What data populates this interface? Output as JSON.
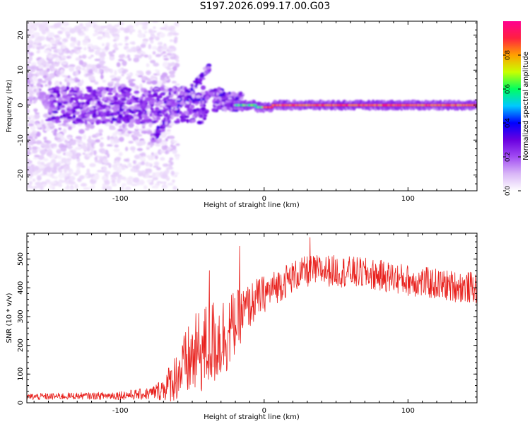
{
  "page": {
    "title": "S197.2026.099.17.00.G03"
  },
  "chart_data": [
    {
      "type": "heatmap",
      "title": "S197.2026.099.17.00.G03",
      "xlabel": "Height of straight line (km)",
      "ylabel": "Frequency (Hz)",
      "xlim": [
        -165,
        148
      ],
      "ylim": [
        -24.5,
        24
      ],
      "xticks": [
        -100,
        0,
        100
      ],
      "xtick_labels": [
        "-100",
        "0",
        "100"
      ],
      "yticks": [
        -20,
        -10,
        0,
        10,
        20
      ],
      "ytick_labels": [
        "-20",
        "-10",
        "0",
        "10",
        "20"
      ],
      "colorbar": {
        "label": "Normalized spectral amplitude",
        "range": [
          0.0,
          1.0
        ],
        "ticks": [
          0.0,
          0.2,
          0.4,
          0.6,
          0.8
        ],
        "tick_labels": [
          "0.0",
          "0.2",
          "0.4",
          "0.6",
          "0.8"
        ],
        "colormap_stops": [
          "#ffffff",
          "#d9b7f7",
          "#a24cf3",
          "#6a00e0",
          "#0000ff",
          "#00c8ff",
          "#00ff60",
          "#c8ff00",
          "#ffa000",
          "#ff2040",
          "#ff0090"
        ]
      },
      "features": [
        {
          "name": "zero-frequency line",
          "x_range": [
            -25,
            148
          ],
          "frequency_hz": 0,
          "peak_amplitude": 1.0
        },
        {
          "name": "upper diagonal branch",
          "from": [
            -78,
            -10
          ],
          "to": [
            -38,
            11
          ],
          "peak_amplitude": 0.3
        },
        {
          "name": "lower diagonal branch",
          "from": [
            -68,
            0
          ],
          "to": [
            -30,
            4
          ],
          "peak_amplitude": 0.3
        },
        {
          "name": "noise cluster",
          "x_range": [
            -165,
            -80
          ],
          "frequency_range_hz": [
            -24,
            24
          ],
          "peak_amplitude": 0.15
        }
      ]
    },
    {
      "type": "line",
      "xlabel": "Height of straight line (km)",
      "ylabel": "SNR (10 * v/v)",
      "xlim": [
        -165,
        148
      ],
      "ylim": [
        0,
        590
      ],
      "xticks": [
        -100,
        0,
        100
      ],
      "xtick_labels": [
        "-100",
        "0",
        "100"
      ],
      "yticks": [
        0,
        100,
        200,
        300,
        400,
        500
      ],
      "ytick_labels": [
        "0",
        "100",
        "200",
        "300",
        "400",
        "500"
      ],
      "series": [
        {
          "name": "SNR",
          "color": "#e8201c",
          "x": [
            -165,
            -150,
            -140,
            -130,
            -120,
            -110,
            -100,
            -90,
            -80,
            -75,
            -70,
            -65,
            -60,
            -55,
            -50,
            -45,
            -40,
            -35,
            -30,
            -25,
            -20,
            -15,
            -10,
            -5,
            0,
            5,
            10,
            15,
            20,
            25,
            30,
            35,
            40,
            50,
            60,
            70,
            80,
            90,
            100,
            110,
            120,
            130,
            140,
            148
          ],
          "values": [
            22,
            23,
            24,
            25,
            25,
            26,
            28,
            30,
            34,
            42,
            55,
            80,
            110,
            140,
            170,
            190,
            210,
            225,
            240,
            260,
            290,
            320,
            345,
            370,
            385,
            400,
            415,
            430,
            445,
            455,
            462,
            465,
            466,
            464,
            460,
            455,
            448,
            440,
            432,
            425,
            418,
            412,
            408,
            405
          ],
          "noise_amplitude": [
            12,
            12,
            12,
            12,
            12,
            14,
            16,
            18,
            22,
            28,
            45,
            70,
            95,
            120,
            140,
            150,
            155,
            155,
            150,
            140,
            110,
            90,
            80,
            70,
            65,
            60,
            60,
            60,
            55,
            55,
            55,
            55,
            55,
            55,
            55,
            55,
            55,
            55,
            55,
            55,
            55,
            55,
            55,
            55
          ],
          "spikes": [
            {
              "x": -17,
              "value": 545
            },
            {
              "x": -38,
              "value": 460
            },
            {
              "x": 32,
              "value": 575
            }
          ]
        }
      ]
    }
  ]
}
